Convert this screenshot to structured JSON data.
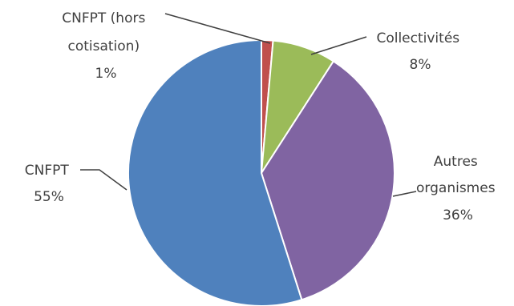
{
  "chart_data": {
    "type": "pie",
    "title": "",
    "start_angle_deg": 0,
    "direction": "clockwise",
    "slices": [
      {
        "label_lines": [
          "CNFPT (hors",
          "cotisation)"
        ],
        "pct_label": "1%",
        "value": 1.4,
        "color": "#C0504D"
      },
      {
        "label_lines": [
          "Collectivités"
        ],
        "pct_label": "8%",
        "value": 7.7,
        "color": "#9BBB59"
      },
      {
        "label_lines": [
          "Autres",
          "organismes"
        ],
        "pct_label": "36%",
        "value": 36.0,
        "color": "#8064A2"
      },
      {
        "label_lines": [
          "CNFPT"
        ],
        "pct_label": "55%",
        "value": 54.9,
        "color": "#4F81BD"
      }
    ],
    "legend": "none",
    "data_labels": "outside-with-leader-lines"
  }
}
